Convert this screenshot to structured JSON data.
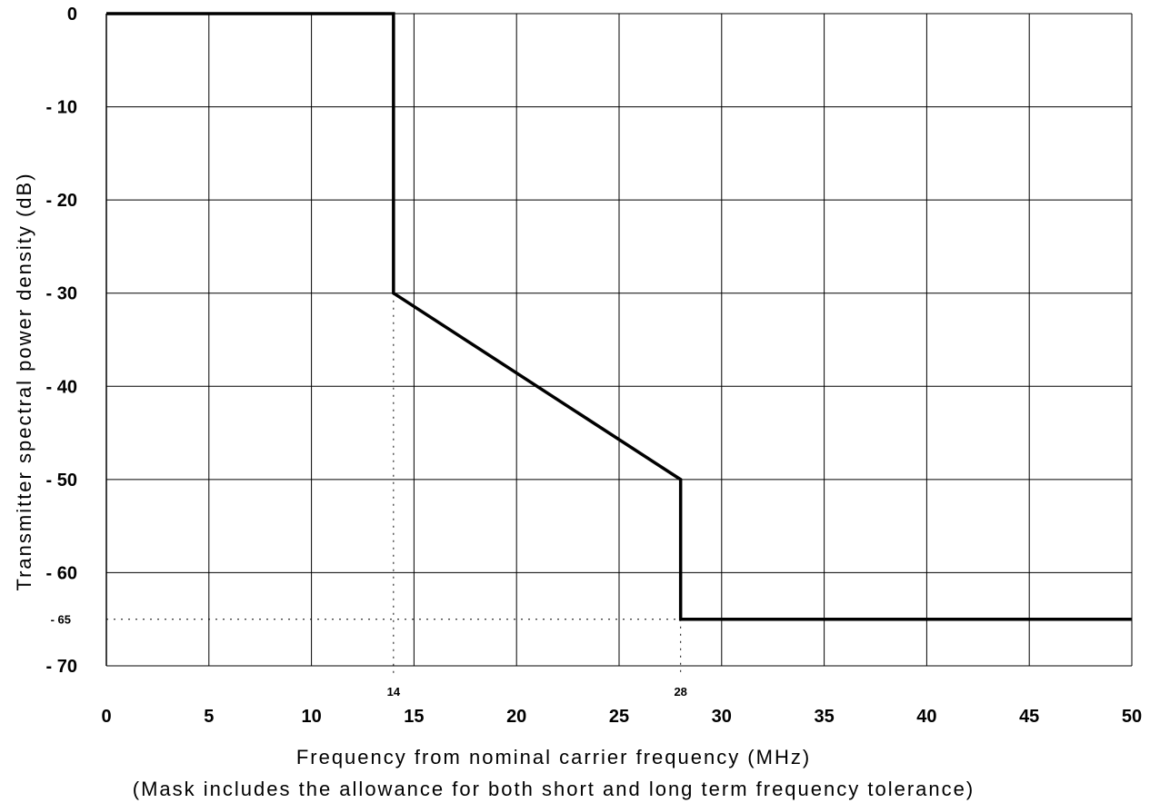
{
  "chart_data": {
    "type": "line",
    "xlabel": "Frequency from nominal carrier frequency (MHz)",
    "xlabel_note": "(Mask includes the allowance for both short and long term frequency tolerance)",
    "ylabel": "Transmitter spectral power density (dB)",
    "xlim": [
      0,
      50
    ],
    "ylim": [
      -70,
      0
    ],
    "grid": true,
    "x_ticks": [
      0,
      5,
      10,
      15,
      20,
      25,
      30,
      35,
      40,
      45,
      50
    ],
    "x_tick_labels": [
      "0",
      "5",
      "10",
      "15",
      "20",
      "25",
      "30",
      "35",
      "40",
      "45",
      "50"
    ],
    "y_ticks": [
      0,
      -10,
      -20,
      -30,
      -40,
      -50,
      -60,
      -70
    ],
    "y_tick_labels": [
      "0",
      "- 10",
      "- 20",
      "- 30",
      "- 40",
      "- 50",
      "- 60",
      "- 70"
    ],
    "extra_x_ticks": [
      {
        "value": 14,
        "label": "14"
      },
      {
        "value": 28,
        "label": "28"
      }
    ],
    "extra_y_ticks": [
      {
        "value": -65,
        "label": "- 65"
      }
    ],
    "series": [
      {
        "x": [
          0,
          14,
          14,
          28,
          28,
          50
        ],
        "y": [
          0,
          0,
          -30,
          -50,
          -65,
          -65
        ],
        "color": "#000000"
      }
    ],
    "reference_lines": [
      {
        "orientation": "vertical",
        "x": 14,
        "y_from": -30,
        "y_to": -70,
        "style": "dotted"
      },
      {
        "orientation": "vertical",
        "x": 28,
        "y_from": -65,
        "y_to": -70,
        "style": "dotted"
      },
      {
        "orientation": "horizontal",
        "y": -65,
        "x_from": 0,
        "x_to": 28,
        "style": "dotted"
      }
    ]
  }
}
